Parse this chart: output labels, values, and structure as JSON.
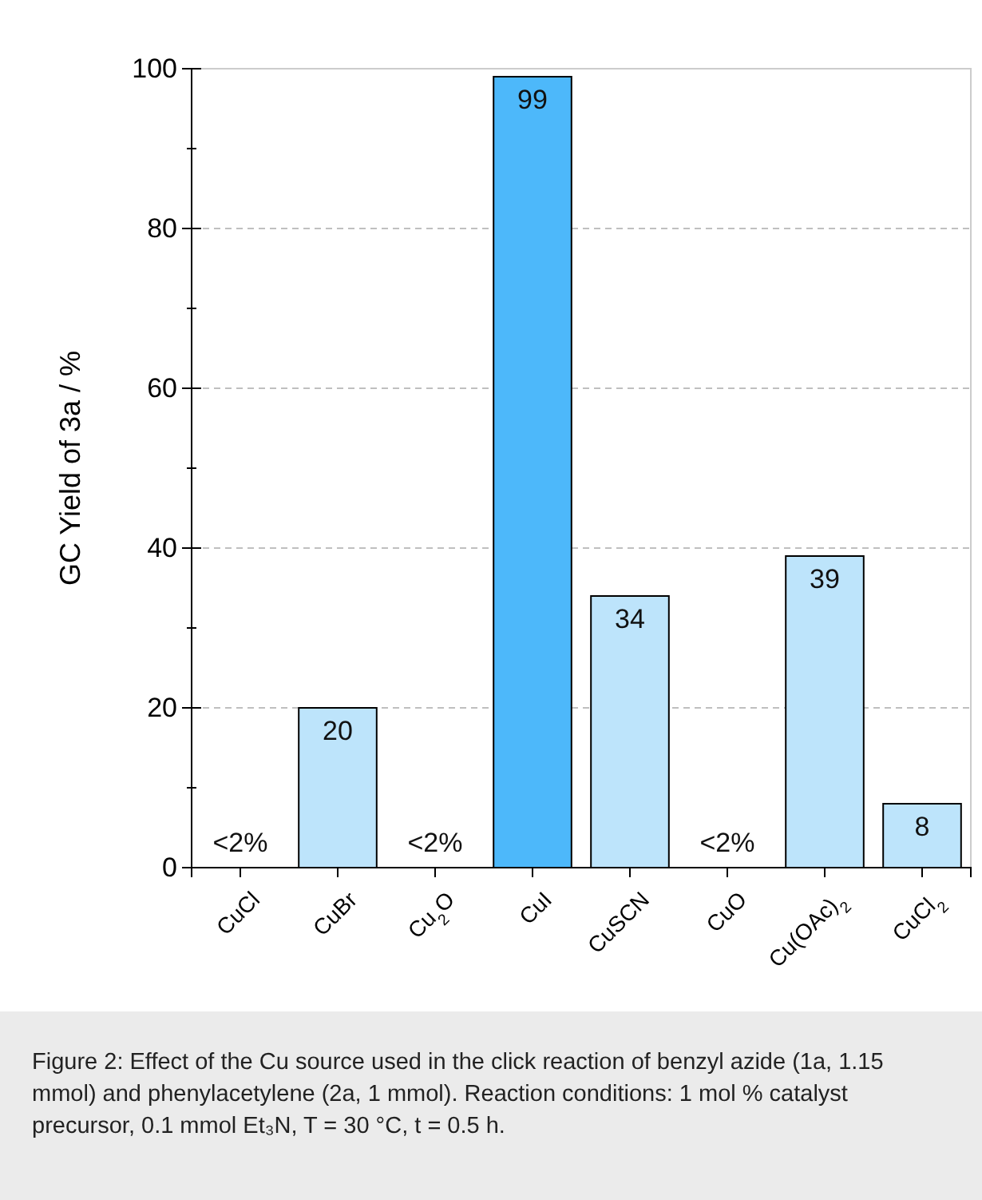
{
  "chart_data": {
    "type": "bar",
    "ylabel": "GC Yield of 3a / %",
    "categories": [
      "CuCl",
      "CuBr",
      "Cu$_{2}$O",
      "CuI",
      "CuSCN",
      "CuO",
      "Cu(OAc)$_{2}$",
      "CuCl$_{2}$"
    ],
    "values": [
      0,
      20,
      0,
      99,
      34,
      0,
      39,
      8
    ],
    "value_labels": [
      "<2%",
      "20",
      "<2%",
      "99",
      "34",
      "<2%",
      "39",
      "8"
    ],
    "colors": [
      "#bde4fb",
      "#bde4fb",
      "#bde4fb",
      "#4db8fa",
      "#bde4fb",
      "#bde4fb",
      "#bde4fb",
      "#bde4fb"
    ],
    "ylim": [
      0,
      100
    ],
    "yticks": [
      0,
      {
        "value": 10,
        "label": null
      },
      20,
      {
        "value": 30,
        "label": null
      },
      40,
      {
        "value": 50,
        "label": null
      },
      60,
      {
        "value": 70,
        "label": null
      },
      80,
      {
        "value": 90,
        "label": null
      },
      100
    ],
    "grid": "y",
    "annotations": [
      "Figure 2: Effect of the Cu source used in the click reaction of benzyl azide (1a, 1.15 mmol) and phenylacetylene (2a, 1 mmol). Reaction conditions: 1 mol % catalyst precursor, 0.1 mmol Et₃N, T = 30 °C, t = 0.5 h."
    ]
  }
}
